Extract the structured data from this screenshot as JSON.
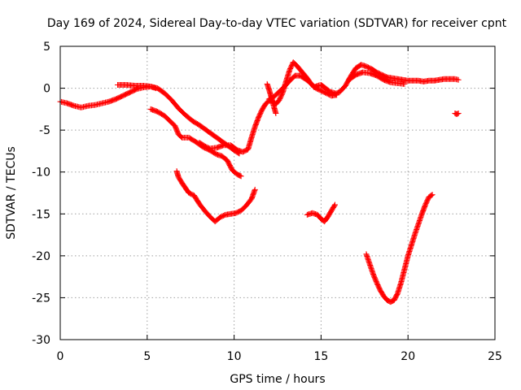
{
  "chart_data": {
    "type": "scatter",
    "title": "Day 169 of 2024, Sidereal Day-to-day VTEC variation (SDTVAR) for receiver cpnt",
    "xlabel": "GPS time / hours",
    "ylabel": "SDTVAR / TECUs",
    "xlim": [
      0,
      25
    ],
    "ylim": [
      -30,
      5
    ],
    "xticks": [
      0,
      5,
      10,
      15,
      20,
      25
    ],
    "yticks": [
      5,
      0,
      -5,
      -10,
      -15,
      -20,
      -25,
      -30
    ],
    "grid": true,
    "marker": "+",
    "color": "#ff0000",
    "series": [
      {
        "name": "arc-1",
        "x": [
          0.0,
          0.4,
          0.8,
          1.2,
          1.6,
          2.0,
          2.4,
          2.8,
          3.2,
          3.6,
          4.0,
          4.4,
          4.8,
          5.2,
          5.6,
          6.0,
          6.4,
          6.8,
          7.2,
          7.6,
          8.0,
          8.4,
          8.8,
          9.2,
          9.6,
          10.0,
          10.3
        ],
        "y": [
          -1.6,
          -1.8,
          -2.1,
          -2.3,
          -2.1,
          -2.0,
          -1.8,
          -1.6,
          -1.3,
          -0.9,
          -0.5,
          -0.1,
          0.1,
          0.2,
          0.0,
          -0.6,
          -1.4,
          -2.4,
          -3.2,
          -3.9,
          -4.4,
          -5.0,
          -5.6,
          -6.2,
          -6.8,
          -7.4,
          -7.8
        ]
      },
      {
        "name": "arc-2",
        "x": [
          3.3,
          3.8,
          4.3,
          4.8,
          5.2,
          5.5
        ],
        "y": [
          0.4,
          0.4,
          0.3,
          0.3,
          0.2,
          0.0
        ]
      },
      {
        "name": "arc-3",
        "x": [
          5.2,
          5.6,
          6.0,
          6.3,
          6.6,
          6.8,
          7.0,
          7.4,
          7.8,
          8.2,
          8.6,
          9.0,
          9.3,
          9.6,
          9.9,
          10.2,
          10.4
        ],
        "y": [
          -2.5,
          -2.8,
          -3.3,
          -3.9,
          -4.5,
          -5.5,
          -5.9,
          -5.9,
          -6.4,
          -7.0,
          -7.4,
          -7.9,
          -8.1,
          -8.6,
          -9.8,
          -10.3,
          -10.5
        ]
      },
      {
        "name": "arc-4",
        "x": [
          6.7,
          6.8,
          7.0,
          7.2,
          7.4,
          7.7,
          8.0,
          8.3,
          8.6,
          8.9,
          9.2,
          9.5,
          9.8,
          10.1,
          10.4,
          10.7,
          11.0,
          11.2
        ],
        "y": [
          -9.9,
          -10.6,
          -11.3,
          -11.9,
          -12.5,
          -12.8,
          -13.8,
          -14.6,
          -15.3,
          -15.9,
          -15.4,
          -15.1,
          -15.0,
          -14.9,
          -14.6,
          -14.0,
          -13.2,
          -12.1
        ]
      },
      {
        "name": "arc-5",
        "x": [
          8.0,
          8.3,
          8.6,
          9.0,
          9.4,
          9.8,
          10.2,
          10.5,
          10.8,
          11.0,
          11.2,
          11.4,
          11.6,
          11.8,
          12.0,
          12.2,
          12.4,
          12.6,
          12.8,
          13.0,
          13.2,
          13.4,
          13.6,
          13.8,
          14.0,
          14.2,
          14.4,
          14.6,
          14.8,
          15.0,
          15.2,
          15.5,
          15.8
        ],
        "y": [
          -6.5,
          -6.9,
          -7.2,
          -7.1,
          -6.8,
          -6.8,
          -7.4,
          -7.6,
          -7.3,
          -5.9,
          -4.6,
          -3.5,
          -2.6,
          -1.9,
          -1.5,
          -1.6,
          -1.9,
          -1.4,
          -0.5,
          0.9,
          2.2,
          3.1,
          2.7,
          2.2,
          1.7,
          1.2,
          0.6,
          0.1,
          0.3,
          0.4,
          0.1,
          -0.4,
          -0.6
        ]
      },
      {
        "name": "arc-6",
        "x": [
          12.0,
          12.3,
          12.6,
          12.9,
          13.2,
          13.5,
          13.8,
          14.1,
          14.4,
          14.7,
          15.0,
          15.3,
          15.6,
          15.9
        ],
        "y": [
          -1.3,
          -1.0,
          -0.4,
          0.2,
          0.9,
          1.5,
          1.5,
          1.1,
          0.6,
          0.0,
          -0.3,
          -0.6,
          -0.9,
          -0.8
        ]
      },
      {
        "name": "arc-7",
        "x": [
          11.9,
          12.0,
          12.1,
          12.2,
          12.3,
          12.4
        ],
        "y": [
          0.5,
          -0.1,
          -0.8,
          -1.5,
          -2.3,
          -3.0
        ]
      },
      {
        "name": "arc-8",
        "x": [
          14.2,
          14.5,
          14.8,
          15.0,
          15.2,
          15.4,
          15.6,
          15.8
        ],
        "y": [
          -15.1,
          -14.9,
          -15.1,
          -15.6,
          -15.9,
          -15.3,
          -14.6,
          -13.9
        ]
      },
      {
        "name": "arc-9",
        "x": [
          15.8,
          16.1,
          16.4,
          16.7,
          17.0,
          17.3,
          17.6,
          17.9,
          18.2,
          18.5,
          18.8,
          19.1,
          19.4,
          19.7,
          20.0,
          20.3,
          20.6,
          20.9,
          21.2,
          21.5,
          21.8,
          22.1,
          22.4,
          22.7,
          22.9
        ],
        "y": [
          -0.7,
          -0.4,
          0.3,
          1.4,
          2.4,
          2.8,
          2.6,
          2.3,
          1.9,
          1.6,
          1.3,
          1.2,
          1.1,
          1.0,
          0.9,
          0.9,
          0.9,
          0.8,
          0.9,
          0.9,
          1.0,
          1.1,
          1.1,
          1.1,
          1.0
        ]
      },
      {
        "name": "arc-10",
        "x": [
          16.6,
          17.0,
          17.4,
          17.8,
          18.2,
          18.6,
          19.0,
          19.4,
          19.8
        ],
        "y": [
          1.0,
          1.6,
          1.9,
          1.8,
          1.5,
          1.0,
          0.7,
          0.6,
          0.5
        ]
      },
      {
        "name": "arc-11",
        "x": [
          17.6,
          17.8,
          18.0,
          18.2,
          18.4,
          18.6,
          18.8,
          19.0,
          19.2,
          19.4,
          19.6,
          19.8,
          20.0,
          20.2,
          20.4,
          20.6,
          20.8,
          21.0,
          21.2,
          21.4
        ],
        "y": [
          -19.8,
          -21.0,
          -22.2,
          -23.2,
          -24.1,
          -24.8,
          -25.3,
          -25.5,
          -25.3,
          -24.5,
          -23.2,
          -21.6,
          -20.0,
          -18.7,
          -17.4,
          -16.2,
          -15.0,
          -13.9,
          -13.0,
          -12.7
        ]
      },
      {
        "name": "arc-12",
        "x": [
          22.7,
          22.8,
          22.9
        ],
        "y": [
          -3.0,
          -3.1,
          -3.0
        ]
      }
    ]
  }
}
